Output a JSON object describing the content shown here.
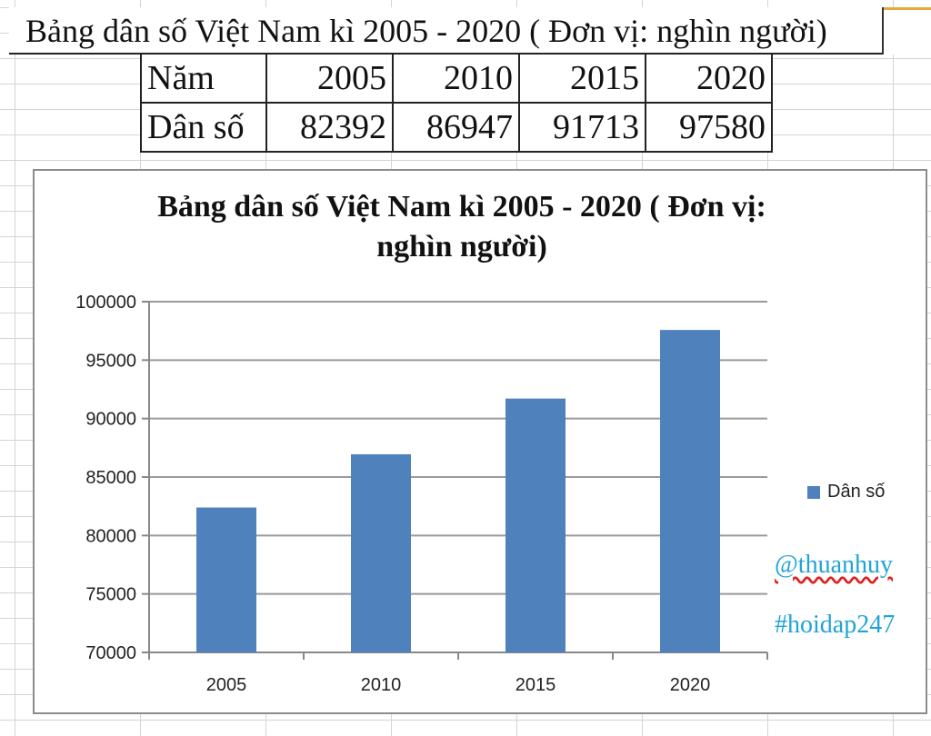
{
  "sheet": {
    "title": "Bảng dân số Việt Nam kì 2005 - 2020 ( Đơn vị: nghìn người)",
    "table": {
      "row_headers": [
        "Năm",
        "Dân số"
      ],
      "years": [
        "2005",
        "2010",
        "2015",
        "2020"
      ],
      "population": [
        "82392",
        "86947",
        "91713",
        "97580"
      ]
    }
  },
  "watermarks": [
    "@thuanhuy",
    "#hoidap247"
  ],
  "chart_data": {
    "type": "bar",
    "title_lines": [
      "Bảng dân số Việt Nam kì 2005 - 2020 ( Đơn vị:",
      "nghìn người)"
    ],
    "categories": [
      "2005",
      "2010",
      "2015",
      "2020"
    ],
    "series": [
      {
        "name": "Dân số",
        "values": [
          82392,
          86947,
          91713,
          97580
        ]
      }
    ],
    "ylim": [
      70000,
      100000
    ],
    "yticks": [
      "70000",
      "75000",
      "80000",
      "85000",
      "90000",
      "95000",
      "100000"
    ],
    "grid": true,
    "legend_position": "right",
    "bar_color": "#4f81bd"
  }
}
